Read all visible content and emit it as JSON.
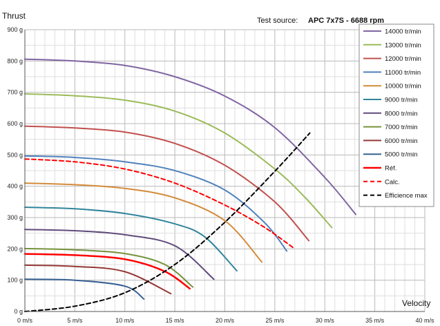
{
  "source": {
    "label": "Test source:",
    "value": "APC 7x7S - 6688 rpm"
  },
  "chart_data": {
    "type": "line",
    "ylabel": "Thrust",
    "xlabel": "Velocity",
    "xlim": [
      0,
      40
    ],
    "ylim": [
      0,
      900
    ],
    "x_ticks": [
      {
        "v": 0,
        "label": "0 m/s"
      },
      {
        "v": 5,
        "label": "5 m/s"
      },
      {
        "v": 10,
        "label": "10 m/s"
      },
      {
        "v": 15,
        "label": "15 m/s"
      },
      {
        "v": 20,
        "label": "20 m/s"
      },
      {
        "v": 25,
        "label": "25 m/s"
      },
      {
        "v": 30,
        "label": "30 m/s"
      },
      {
        "v": 35,
        "label": "35 m/s"
      },
      {
        "v": 40,
        "label": "40 m/s"
      }
    ],
    "y_ticks": [
      {
        "v": 0,
        "label": "0 g"
      },
      {
        "v": 100,
        "label": "100 g"
      },
      {
        "v": 200,
        "label": "200 g"
      },
      {
        "v": 300,
        "label": "300 g"
      },
      {
        "v": 400,
        "label": "400 g"
      },
      {
        "v": 500,
        "label": "500 g"
      },
      {
        "v": 600,
        "label": "600 g"
      },
      {
        "v": 700,
        "label": "700 g"
      },
      {
        "v": 800,
        "label": "800 g"
      },
      {
        "v": 900,
        "label": "900 g"
      }
    ],
    "grid": true,
    "legend_position": "right",
    "series": [
      {
        "name": "14000 tr/min",
        "color": "#8064a2",
        "dash": "",
        "width": 2,
        "x": [
          0,
          5,
          10,
          15,
          20,
          25,
          30,
          33.1
        ],
        "y": [
          806,
          800,
          786,
          750,
          688,
          587,
          428,
          310
        ]
      },
      {
        "name": "13000 tr/min",
        "color": "#9bbb59",
        "dash": "",
        "width": 2,
        "x": [
          0,
          5,
          10,
          15,
          20,
          25,
          28,
          30.7
        ],
        "y": [
          695,
          689,
          675,
          640,
          570,
          455,
          365,
          268
        ]
      },
      {
        "name": "12000 tr/min",
        "color": "#c0504d",
        "dash": "",
        "width": 2,
        "x": [
          0,
          5,
          10,
          15,
          20,
          25,
          28.4
        ],
        "y": [
          592,
          586,
          573,
          537,
          467,
          350,
          226
        ]
      },
      {
        "name": "11000 tr/min",
        "color": "#4f81bd",
        "dash": "",
        "width": 2,
        "x": [
          0,
          5,
          10,
          15,
          20,
          24,
          26.2
        ],
        "y": [
          497,
          492,
          478,
          450,
          388,
          283,
          193
        ]
      },
      {
        "name": "10000 tr/min",
        "color": "#d48a39",
        "dash": "",
        "width": 2,
        "x": [
          0,
          5,
          10,
          15,
          20,
          23.7
        ],
        "y": [
          410,
          405,
          393,
          363,
          290,
          158
        ]
      },
      {
        "name": "9000 tr/min",
        "color": "#31859c",
        "dash": "",
        "width": 2,
        "x": [
          0,
          5,
          10,
          15,
          18,
          21.2
        ],
        "y": [
          333,
          328,
          313,
          280,
          238,
          130
        ]
      },
      {
        "name": "8000 tr/min",
        "color": "#604a7b",
        "dash": "",
        "width": 2,
        "x": [
          0,
          5,
          10,
          15,
          18.9
        ],
        "y": [
          262,
          258,
          245,
          210,
          103
        ]
      },
      {
        "name": "7000 tr/min",
        "color": "#77933c",
        "dash": "",
        "width": 2,
        "x": [
          0,
          5,
          10,
          14,
          16.8
        ],
        "y": [
          201,
          197,
          185,
          150,
          78
        ]
      },
      {
        "name": "6000 tr/min",
        "color": "#953735",
        "dash": "",
        "width": 2,
        "x": [
          0,
          5,
          10,
          14.6
        ],
        "y": [
          148,
          144,
          127,
          57
        ]
      },
      {
        "name": "5000 tr/min",
        "color": "#376092",
        "dash": "",
        "width": 2,
        "x": [
          0,
          5,
          10,
          11.9
        ],
        "y": [
          103,
          100,
          81,
          40
        ]
      },
      {
        "name": "Réf.",
        "color": "#ff0000",
        "dash": "",
        "width": 2.5,
        "x": [
          0,
          5,
          10,
          14,
          16.5
        ],
        "y": [
          184,
          180,
          167,
          128,
          73
        ]
      },
      {
        "name": "Calc.",
        "color": "#ff0000",
        "dash": "6,4",
        "width": 2,
        "x": [
          0,
          5,
          10,
          15,
          20,
          24,
          27
        ],
        "y": [
          487,
          478,
          455,
          410,
          340,
          268,
          200
        ]
      },
      {
        "name": "Efficience max",
        "color": "#000000",
        "dash": "6,4",
        "width": 2,
        "x": [
          0,
          5,
          10,
          15,
          20,
          25,
          28.5
        ],
        "y": [
          0,
          17,
          60,
          150,
          285,
          448,
          570
        ]
      }
    ]
  }
}
